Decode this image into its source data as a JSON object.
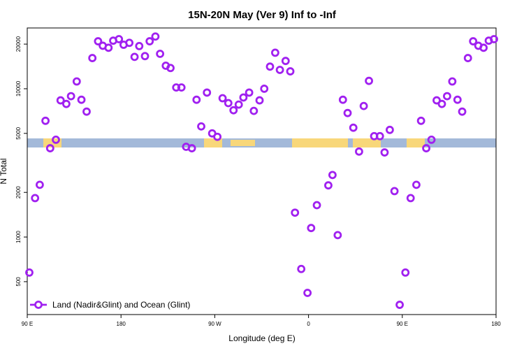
{
  "chart_data": {
    "type": "scatter",
    "title": "15N-20N May (Ver 9)   Inf to -Inf",
    "x_label": "Longitude (deg E)",
    "y_label": "N Total",
    "xlim": [
      90,
      540
    ],
    "xticks": [
      {
        "value": 90,
        "label": "90 E"
      },
      {
        "value": 180,
        "label": "180"
      },
      {
        "value": 270,
        "label": "90 W"
      },
      {
        "value": 360,
        "label": "0"
      },
      {
        "value": 450,
        "label": "90 E"
      },
      {
        "value": 540,
        "label": "180"
      }
    ],
    "ylim": [
      300,
      25700
    ],
    "yticks": [
      500,
      1000,
      2000,
      5000,
      10000,
      20000
    ],
    "log_y": true,
    "legend": "bottom-left",
    "series": [
      {
        "name": "Land (Nadir&Glint) and Ocean (Glint)",
        "color": "#a020f0",
        "x": [
          92,
          97.5,
          102,
          107.5,
          112,
          117.5,
          122,
          127.5,
          132,
          137.5,
          142,
          147,
          152.5,
          158,
          162.5,
          168,
          172.5,
          178,
          182.5,
          188,
          193,
          197.5,
          203,
          207.5,
          213,
          217.5,
          223,
          227.5,
          233,
          238,
          242.5,
          248,
          252.5,
          257,
          262.5,
          267.5,
          272.5,
          277.5,
          283,
          288,
          293,
          297.5,
          303,
          307.5,
          313,
          317.5,
          323,
          328,
          332.5,
          338,
          342.5,
          347,
          353,
          359,
          362.5,
          368,
          379,
          383,
          388,
          393,
          397.5,
          403,
          408.5,
          413,
          418,
          423,
          428.5,
          433,
          438,
          442.5,
          447.5,
          453,
          458,
          463.5,
          468,
          473,
          478,
          483,
          488,
          493,
          498,
          503,
          507.5,
          513,
          518,
          523,
          528,
          533,
          538
        ],
        "values": [
          576,
          1830,
          2250,
          6080,
          3970,
          4530,
          8350,
          7900,
          8910,
          11200,
          8430,
          7010,
          16100,
          20900,
          19500,
          18900,
          21100,
          21600,
          19800,
          20400,
          16400,
          19400,
          16600,
          20900,
          22500,
          17200,
          14300,
          13800,
          10200,
          10200,
          4060,
          3970,
          8430,
          5570,
          9420,
          5000,
          4740,
          8630,
          8000,
          7160,
          7820,
          8730,
          9420,
          7090,
          8350,
          10000,
          14100,
          17500,
          13400,
          15400,
          13100,
          1460,
          609,
          420,
          1150,
          1640,
          2230,
          2620,
          1030,
          8430,
          6860,
          5460,
          3770,
          7650,
          11300,
          4790,
          4790,
          3720,
          5280,
          2040,
          349,
          576,
          1830,
          2250,
          6080,
          3970,
          4530,
          8350,
          7900,
          8910,
          11200,
          8430,
          7010,
          16100,
          20900,
          19500,
          18900,
          21100,
          21600
        ]
      }
    ]
  }
}
